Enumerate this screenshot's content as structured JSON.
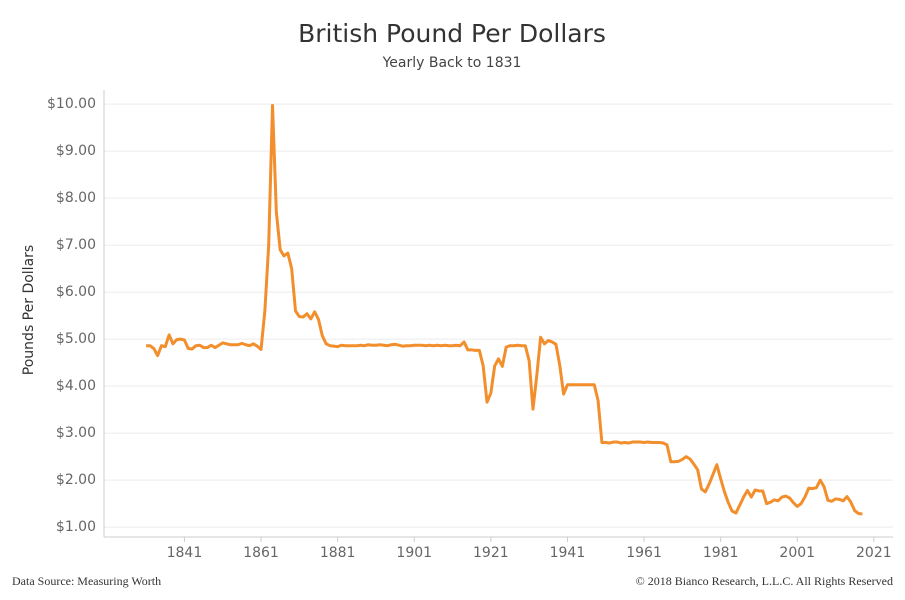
{
  "chart_data": {
    "type": "line",
    "title": "British Pound Per Dollars",
    "subtitle": "Yearly Back to 1831",
    "y_label": "Pounds Per Dollars",
    "source": "Data Source: Measuring Worth",
    "copyright": "© 2018 Bianco Research, L.L.C. All Rights Reserved",
    "grid": true,
    "color": "#f28e2b",
    "x": [
      1831,
      1832,
      1833,
      1834,
      1835,
      1836,
      1837,
      1838,
      1839,
      1840,
      1841,
      1842,
      1843,
      1844,
      1845,
      1846,
      1847,
      1848,
      1849,
      1850,
      1851,
      1852,
      1853,
      1854,
      1855,
      1856,
      1857,
      1858,
      1859,
      1860,
      1861,
      1862,
      1863,
      1864,
      1865,
      1866,
      1867,
      1868,
      1869,
      1870,
      1871,
      1872,
      1873,
      1874,
      1875,
      1876,
      1877,
      1878,
      1879,
      1880,
      1881,
      1882,
      1883,
      1884,
      1885,
      1886,
      1887,
      1888,
      1889,
      1890,
      1891,
      1892,
      1893,
      1894,
      1895,
      1896,
      1897,
      1898,
      1899,
      1900,
      1901,
      1902,
      1903,
      1904,
      1905,
      1906,
      1907,
      1908,
      1909,
      1910,
      1911,
      1912,
      1913,
      1914,
      1915,
      1916,
      1917,
      1918,
      1919,
      1920,
      1921,
      1922,
      1923,
      1924,
      1925,
      1926,
      1927,
      1928,
      1929,
      1930,
      1931,
      1932,
      1933,
      1934,
      1935,
      1936,
      1937,
      1938,
      1939,
      1940,
      1941,
      1942,
      1943,
      1944,
      1945,
      1946,
      1947,
      1948,
      1949,
      1950,
      1951,
      1952,
      1953,
      1954,
      1955,
      1956,
      1957,
      1958,
      1959,
      1960,
      1961,
      1962,
      1963,
      1964,
      1965,
      1966,
      1967,
      1968,
      1969,
      1970,
      1971,
      1972,
      1973,
      1974,
      1975,
      1976,
      1977,
      1978,
      1979,
      1980,
      1981,
      1982,
      1983,
      1984,
      1985,
      1986,
      1987,
      1988,
      1989,
      1990,
      1991,
      1992,
      1993,
      1994,
      1995,
      1996,
      1997,
      1998,
      1999,
      2000,
      2001,
      2002,
      2003,
      2004,
      2005,
      2006,
      2007,
      2008,
      2009,
      2010,
      2011,
      2012,
      2013,
      2014,
      2015,
      2016,
      2017,
      2018
    ],
    "values": [
      4.86,
      4.86,
      4.8,
      4.65,
      4.86,
      4.84,
      5.09,
      4.9,
      4.99,
      5.0,
      4.98,
      4.8,
      4.79,
      4.86,
      4.87,
      4.82,
      4.82,
      4.87,
      4.82,
      4.87,
      4.92,
      4.9,
      4.88,
      4.88,
      4.88,
      4.91,
      4.88,
      4.86,
      4.9,
      4.85,
      4.78,
      5.6,
      7.0,
      9.97,
      7.7,
      6.9,
      6.77,
      6.83,
      6.5,
      5.6,
      5.48,
      5.47,
      5.54,
      5.43,
      5.58,
      5.42,
      5.07,
      4.9,
      4.86,
      4.85,
      4.84,
      4.87,
      4.86,
      4.86,
      4.86,
      4.86,
      4.87,
      4.86,
      4.88,
      4.87,
      4.87,
      4.88,
      4.87,
      4.86,
      4.88,
      4.89,
      4.87,
      4.85,
      4.86,
      4.86,
      4.87,
      4.87,
      4.87,
      4.86,
      4.87,
      4.86,
      4.87,
      4.86,
      4.87,
      4.86,
      4.86,
      4.87,
      4.86,
      4.94,
      4.77,
      4.77,
      4.76,
      4.76,
      4.43,
      3.66,
      3.85,
      4.43,
      4.58,
      4.42,
      4.83,
      4.86,
      4.86,
      4.87,
      4.86,
      4.86,
      4.54,
      3.51,
      4.23,
      5.04,
      4.9,
      4.97,
      4.94,
      4.89,
      4.44,
      3.83,
      4.03,
      4.03,
      4.03,
      4.03,
      4.03,
      4.03,
      4.03,
      4.03,
      3.69,
      2.8,
      2.8,
      2.79,
      2.81,
      2.81,
      2.79,
      2.8,
      2.79,
      2.81,
      2.81,
      2.81,
      2.8,
      2.81,
      2.8,
      2.8,
      2.8,
      2.79,
      2.75,
      2.39,
      2.39,
      2.4,
      2.44,
      2.5,
      2.45,
      2.34,
      2.22,
      1.81,
      1.75,
      1.92,
      2.12,
      2.33,
      2.03,
      1.75,
      1.52,
      1.34,
      1.3,
      1.47,
      1.64,
      1.78,
      1.64,
      1.79,
      1.77,
      1.77,
      1.5,
      1.53,
      1.58,
      1.56,
      1.64,
      1.66,
      1.62,
      1.52,
      1.44,
      1.5,
      1.64,
      1.83,
      1.82,
      1.84,
      2.0,
      1.86,
      1.57,
      1.55,
      1.6,
      1.59,
      1.56,
      1.65,
      1.53,
      1.35,
      1.29,
      1.28
    ],
    "xlim": [
      1820,
      2026
    ],
    "xticks": [
      1841,
      1861,
      1881,
      1901,
      1921,
      1941,
      1961,
      1981,
      2001,
      2021
    ],
    "ylim": [
      0.79,
      10.3
    ],
    "yticks": [
      {
        "value": 1,
        "label": "$1.00"
      },
      {
        "value": 2,
        "label": "$2.00"
      },
      {
        "value": 3,
        "label": "$3.00"
      },
      {
        "value": 4,
        "label": "$4.00"
      },
      {
        "value": 5,
        "label": "$5.00"
      },
      {
        "value": 6,
        "label": "$6.00"
      },
      {
        "value": 7,
        "label": "$7.00"
      },
      {
        "value": 8,
        "label": "$8.00"
      },
      {
        "value": 9,
        "label": "$9.00"
      },
      {
        "value": 10,
        "label": "$10.00"
      }
    ]
  }
}
